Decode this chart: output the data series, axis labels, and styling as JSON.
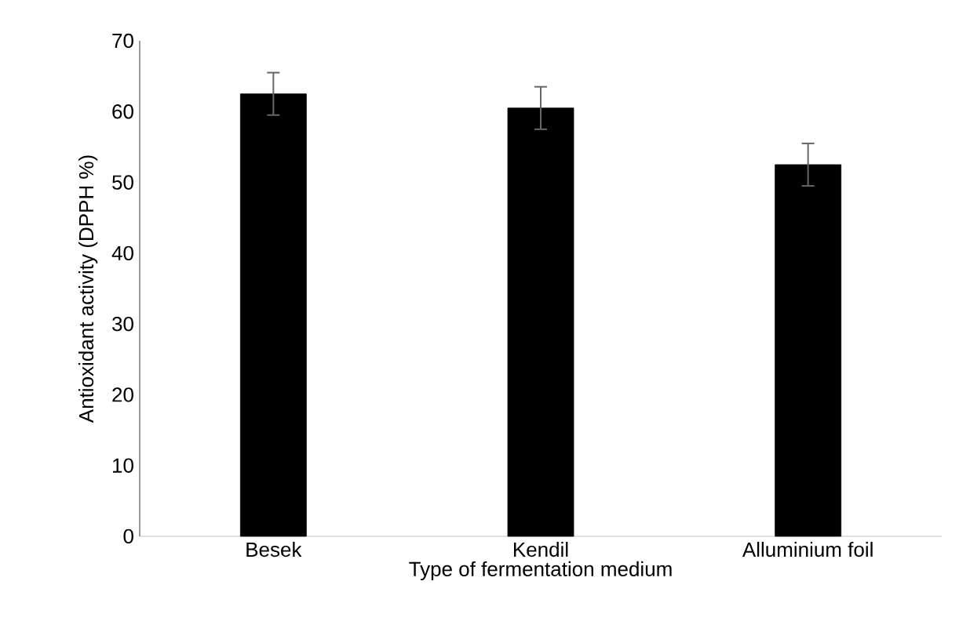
{
  "chart_data": {
    "type": "bar",
    "xlabel": "Type of fermentation medium",
    "ylabel": "Antioxidant activity (DPPH %)",
    "categories": [
      "Besek",
      "Kendil",
      "Alluminium  foil"
    ],
    "values": [
      62.5,
      60.5,
      52.5
    ],
    "errors": [
      3,
      3,
      3
    ],
    "color": "#000000",
    "ylim": [
      0,
      70
    ],
    "yticks": [
      0,
      10,
      20,
      30,
      40,
      50,
      60,
      70
    ],
    "grid": false
  }
}
